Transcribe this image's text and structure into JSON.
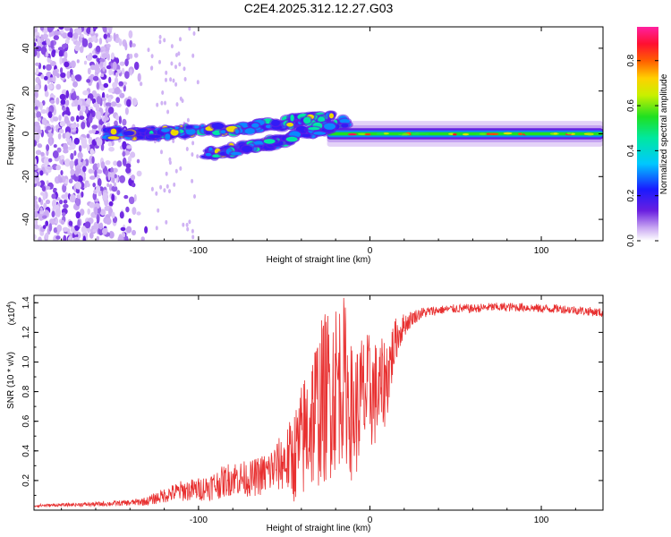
{
  "chart_data": [
    {
      "type": "heatmap",
      "title": "C2E4.2025.312.12.27.G03",
      "xlabel": "Height of straight line (km)",
      "ylabel": "Frequency (Hz)",
      "xlim": [
        -196,
        136
      ],
      "ylim": [
        -50,
        50
      ],
      "x_ticks": [
        -100,
        0,
        100
      ],
      "y_ticks": [
        -40,
        -20,
        0,
        20,
        40
      ],
      "colorbar": {
        "label": "Normalized spectral amplitude",
        "range": [
          0,
          0.95
        ],
        "ticks": [
          "0.0",
          "0.2",
          "0.4",
          "0.6",
          "0.8"
        ],
        "tick_values": [
          0,
          0.2,
          0.4,
          0.6,
          0.8
        ]
      },
      "features": [
        {
          "name": "noise",
          "x_range": [
            -196,
            -130
          ],
          "y_range": [
            -50,
            50
          ],
          "amplitude": 0.1
        },
        {
          "name": "main-trace",
          "points": [
            [
              -155,
              0
            ],
            [
              -130,
              0
            ],
            [
              -110,
              1
            ],
            [
              -90,
              2
            ],
            [
              -70,
              3
            ],
            [
              -50,
              5
            ],
            [
              -35,
              7
            ],
            [
              -25,
              8
            ]
          ],
          "amplitude": 0.45
        },
        {
          "name": "lower-trace",
          "points": [
            [
              -95,
              -9
            ],
            [
              -75,
              -7
            ],
            [
              -55,
              -4
            ],
            [
              -40,
              0
            ],
            [
              -25,
              3
            ],
            [
              -15,
              5
            ]
          ],
          "amplitude": 0.4
        },
        {
          "name": "carrier",
          "x_range": [
            -25,
            136
          ],
          "y": 0,
          "amplitude": 0.55
        }
      ]
    },
    {
      "type": "line",
      "xlabel": "Height of straight line (km)",
      "ylabel": "SNR (10 * v/v)",
      "y_scale_label": "(x10",
      "y_scale_exp": "4",
      "y_scale_suffix": ")",
      "xlim": [
        -196,
        136
      ],
      "ylim": [
        0,
        1.45
      ],
      "x_ticks": [
        -100,
        0,
        100
      ],
      "y_ticks": [
        0.2,
        0.4,
        0.6,
        0.8,
        1.0,
        1.2,
        1.4
      ],
      "color": "#e83030",
      "series": [
        {
          "name": "SNR",
          "x": [
            -196,
            -180,
            -160,
            -140,
            -130,
            -120,
            -110,
            -100,
            -90,
            -80,
            -70,
            -60,
            -50,
            -45,
            -40,
            -35,
            -30,
            -25,
            -20,
            -15,
            -10,
            -5,
            0,
            5,
            10,
            15,
            20,
            25,
            30,
            40,
            50,
            60,
            70,
            80,
            90,
            100,
            110,
            120,
            130,
            136
          ],
          "y": [
            0.03,
            0.035,
            0.04,
            0.05,
            0.06,
            0.1,
            0.13,
            0.14,
            0.17,
            0.22,
            0.21,
            0.25,
            0.33,
            0.35,
            0.45,
            0.6,
            0.7,
            0.78,
            0.85,
            0.9,
            0.62,
            0.75,
            0.8,
            0.78,
            0.9,
            1.15,
            1.25,
            1.3,
            1.33,
            1.35,
            1.36,
            1.36,
            1.37,
            1.37,
            1.37,
            1.36,
            1.36,
            1.35,
            1.34,
            1.33
          ],
          "spread": [
            0.01,
            0.01,
            0.015,
            0.02,
            0.03,
            0.05,
            0.07,
            0.08,
            0.1,
            0.12,
            0.12,
            0.15,
            0.2,
            0.3,
            0.4,
            0.5,
            0.55,
            0.6,
            0.6,
            0.55,
            0.45,
            0.45,
            0.4,
            0.35,
            0.3,
            0.15,
            0.08,
            0.05,
            0.04,
            0.03,
            0.03,
            0.03,
            0.03,
            0.03,
            0.03,
            0.03,
            0.03,
            0.03,
            0.03,
            0.03
          ]
        }
      ]
    }
  ]
}
